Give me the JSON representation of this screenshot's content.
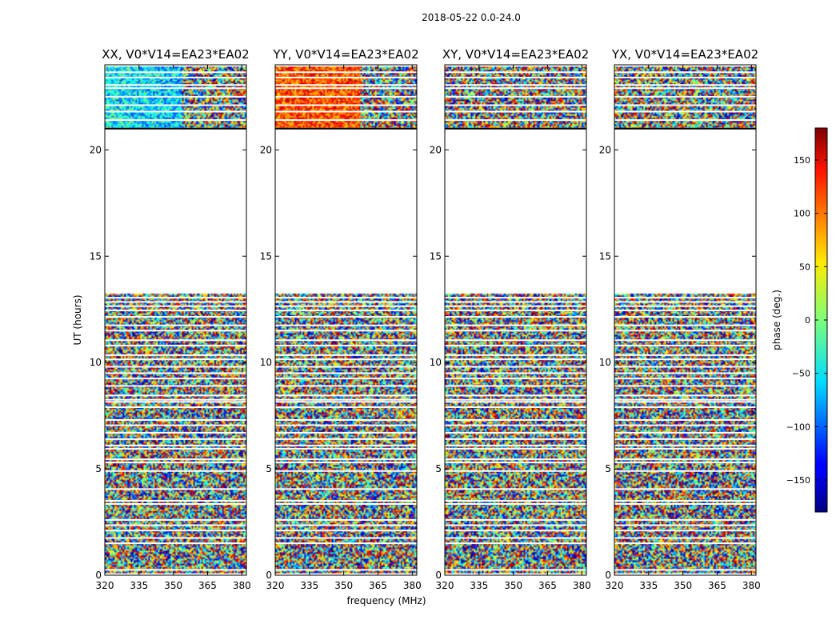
{
  "chart_data": {
    "type": "heatmap",
    "suptitle": "2018-05-22 0.0-24.0",
    "xlabel": "frequency (MHz)",
    "ylabel": "UT (hours)",
    "xlim": [
      320,
      382
    ],
    "ylim": [
      0,
      24
    ],
    "xticks": [
      320,
      335,
      350,
      365,
      380
    ],
    "yticks": [
      0,
      5,
      10,
      15,
      20
    ],
    "panels": [
      {
        "title": "XX, V0*V14=EA23*EA02",
        "pattern": "xx"
      },
      {
        "title": "YY, V0*V14=EA23*EA02",
        "pattern": "yy"
      },
      {
        "title": "XY, V0*V14=EA23*EA02",
        "pattern": "noise"
      },
      {
        "title": "YX, V0*V14=EA23*EA02",
        "pattern": "noise"
      }
    ],
    "data_gap_hours": [
      13.2,
      21.0
    ],
    "flagged_hours": [
      0.05,
      0.25,
      1.5,
      1.75,
      2.1,
      2.35,
      2.6,
      3.35,
      3.5,
      4.05,
      4.9,
      5.3,
      5.45,
      5.95,
      6.1,
      6.4,
      6.7,
      7.05,
      7.3,
      7.9,
      8.15,
      8.25,
      8.45,
      8.9,
      9.25,
      9.5,
      9.8,
      10.15,
      10.35,
      10.8,
      11.05,
      11.5,
      11.75,
      12.15,
      12.45,
      12.65,
      12.85,
      13.05,
      21.0,
      21.4,
      21.8,
      22.1,
      22.5,
      22.9,
      23.05,
      23.4,
      23.65,
      23.95
    ],
    "colorbar": {
      "label": "phase (deg.)",
      "range": [
        -180,
        180
      ],
      "ticks": [
        150,
        100,
        50,
        0,
        -50,
        -100,
        -150
      ],
      "tick_labels": [
        "150",
        "100",
        "50",
        "0",
        "−50",
        "−100",
        "−150"
      ],
      "colormap": "jet"
    }
  }
}
